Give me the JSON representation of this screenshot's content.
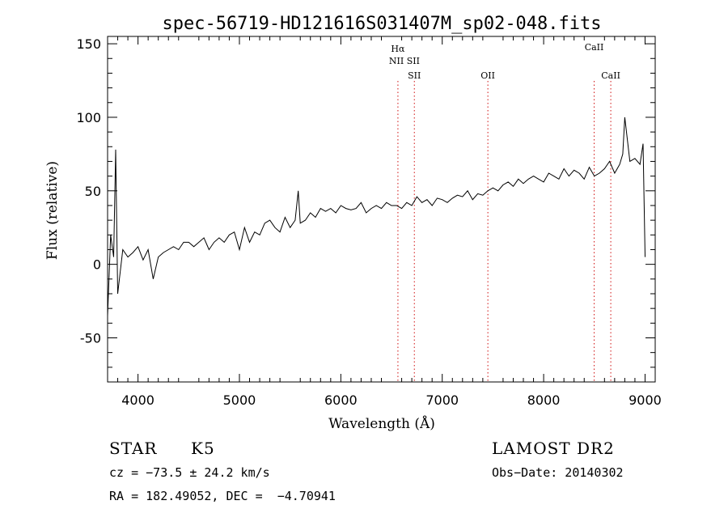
{
  "chart_data": {
    "type": "line",
    "title": "spec-56719-HD121616S031407M_sp02-048.fits",
    "xlabel": "Wavelength (Å)",
    "ylabel": "Flux (relative)",
    "xlim": [
      3700,
      9100
    ],
    "ylim": [
      -80,
      155
    ],
    "xticks": [
      4000,
      5000,
      6000,
      7000,
      8000,
      9000
    ],
    "yticks": [
      -50,
      0,
      50,
      100,
      150
    ],
    "grid": false,
    "lines": [
      {
        "label": "Hα",
        "sublabel": "NII SII",
        "x": 6563
      },
      {
        "label": "SII",
        "x": 6725
      },
      {
        "label": "OII",
        "x": 7450
      },
      {
        "label": "CaII",
        "x": 8498
      },
      {
        "label": "CaII",
        "x": 8662
      }
    ],
    "series": [
      {
        "color": "#000000",
        "x": [
          3700,
          3730,
          3760,
          3780,
          3800,
          3850,
          3900,
          3950,
          4000,
          4050,
          4100,
          4150,
          4200,
          4250,
          4300,
          4350,
          4400,
          4450,
          4500,
          4550,
          4600,
          4650,
          4700,
          4750,
          4800,
          4850,
          4900,
          4950,
          5000,
          5050,
          5100,
          5150,
          5200,
          5250,
          5300,
          5350,
          5400,
          5450,
          5500,
          5550,
          5580,
          5600,
          5650,
          5700,
          5750,
          5800,
          5850,
          5900,
          5950,
          6000,
          6050,
          6100,
          6150,
          6200,
          6250,
          6300,
          6350,
          6400,
          6450,
          6500,
          6550,
          6600,
          6650,
          6700,
          6750,
          6800,
          6850,
          6900,
          6950,
          7000,
          7050,
          7100,
          7150,
          7200,
          7250,
          7300,
          7350,
          7400,
          7450,
          7500,
          7550,
          7600,
          7650,
          7700,
          7750,
          7800,
          7850,
          7900,
          7950,
          8000,
          8050,
          8100,
          8150,
          8200,
          8250,
          8300,
          8350,
          8400,
          8450,
          8500,
          8550,
          8600,
          8650,
          8700,
          8750,
          8780,
          8800,
          8850,
          8900,
          8950,
          8980,
          9000
        ],
        "y": [
          -35,
          20,
          5,
          78,
          -20,
          10,
          5,
          8,
          12,
          3,
          10,
          -10,
          5,
          8,
          10,
          12,
          10,
          15,
          15,
          12,
          15,
          18,
          10,
          15,
          18,
          15,
          20,
          22,
          10,
          25,
          15,
          22,
          20,
          28,
          30,
          25,
          22,
          32,
          25,
          30,
          50,
          28,
          30,
          35,
          32,
          38,
          36,
          38,
          35,
          40,
          38,
          37,
          38,
          42,
          35,
          38,
          40,
          38,
          42,
          40,
          40,
          38,
          42,
          40,
          46,
          42,
          44,
          40,
          45,
          44,
          42,
          45,
          47,
          46,
          50,
          44,
          48,
          47,
          50,
          52,
          50,
          54,
          56,
          53,
          58,
          55,
          58,
          60,
          58,
          56,
          62,
          60,
          58,
          65,
          60,
          64,
          62,
          58,
          66,
          60,
          62,
          65,
          70,
          62,
          68,
          75,
          100,
          70,
          72,
          68,
          82,
          5
        ]
      }
    ]
  },
  "footer": {
    "object_type": "STAR",
    "subclass": "K5",
    "survey": "LAMOST DR2",
    "cz": "cz = −73.5 ± 24.2 km/s",
    "obs_date": "Obs−Date: 20140302",
    "coords": "RA = 182.49052, DEC =  −4.70941"
  }
}
